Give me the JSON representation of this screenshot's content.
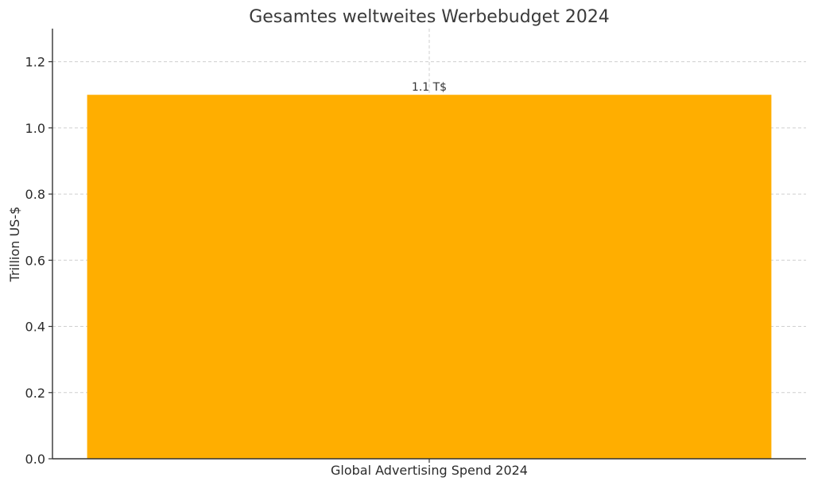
{
  "chart_data": {
    "type": "bar",
    "title": "Gesamtes weltweites Werbebudget 2024",
    "xlabel": "",
    "ylabel": "Trillion US-$",
    "categories": [
      "Global Advertising Spend 2024"
    ],
    "values": [
      1.1
    ],
    "data_labels": [
      "1.1 T$"
    ],
    "ylim": [
      0,
      1.3
    ],
    "yticks": [
      0.0,
      0.2,
      0.4,
      0.6,
      0.8,
      1.0,
      1.2
    ],
    "ytick_labels": [
      "0.0",
      "0.2",
      "0.4",
      "0.6",
      "0.8",
      "1.0",
      "1.2"
    ],
    "grid": true,
    "colors": {
      "bar": "#FFAE00",
      "grid": "#cfcfcf",
      "axis": "#333333"
    }
  }
}
